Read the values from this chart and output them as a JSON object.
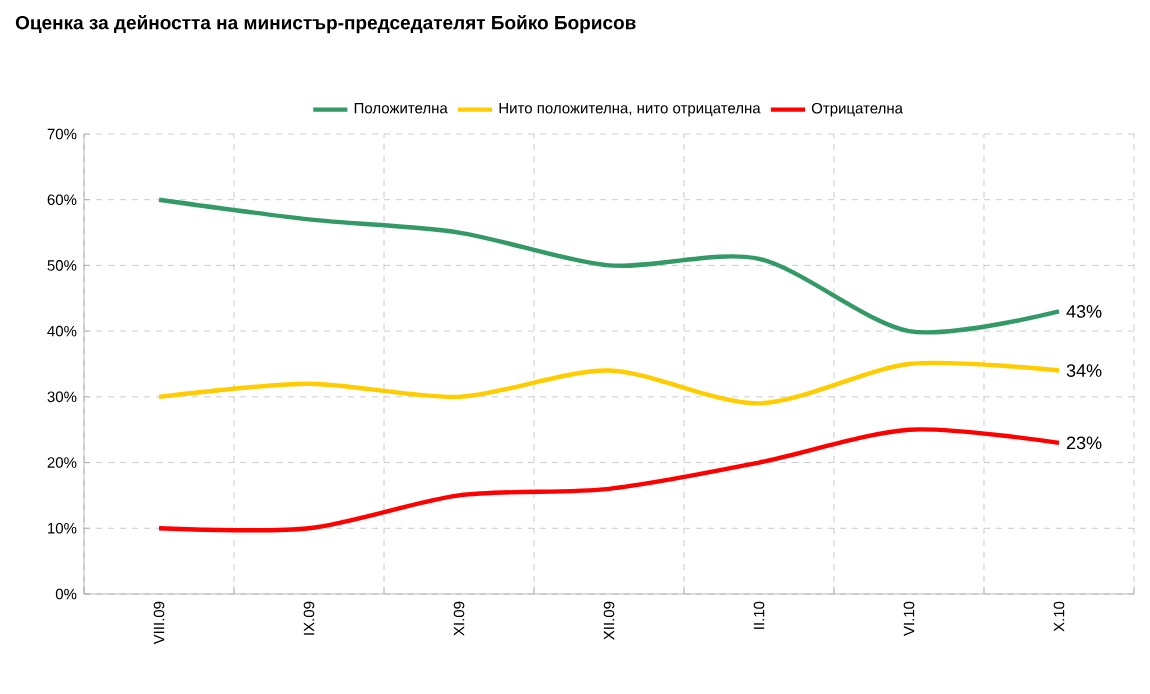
{
  "chart_data": {
    "type": "line",
    "title": "Оценка за дейността на министър-председателят  Бойко Борисов",
    "categories": [
      "VIII.09",
      "IX.09",
      "XI.09",
      "XII.09",
      "II.10",
      "VI.10",
      "X.10"
    ],
    "series": [
      {
        "name": "Положителна",
        "color": "#339966",
        "values": [
          60,
          57,
          55,
          50,
          51,
          40,
          43
        ],
        "value_labels": [
          null,
          null,
          null,
          null,
          null,
          null,
          "43%"
        ]
      },
      {
        "name": "Нито положителна, нито отрицателна",
        "color": "#ffcc00",
        "values": [
          30,
          32,
          30,
          34,
          29,
          35,
          34
        ],
        "value_labels": [
          null,
          null,
          null,
          null,
          null,
          null,
          "34%"
        ]
      },
      {
        "name": "Отрицателна",
        "color": "#ff0000",
        "values": [
          10,
          10,
          15,
          16,
          20,
          25,
          23
        ],
        "value_labels": [
          null,
          null,
          null,
          null,
          null,
          null,
          "23%"
        ]
      }
    ],
    "ylim": [
      0,
      70
    ],
    "yticks": [
      {
        "value": 0,
        "label": "0%"
      },
      {
        "value": 10,
        "label": "10%"
      },
      {
        "value": 20,
        "label": "20%"
      },
      {
        "value": 30,
        "label": "30%"
      },
      {
        "value": 40,
        "label": "40%"
      },
      {
        "value": 50,
        "label": "50%"
      },
      {
        "value": 60,
        "label": "60%"
      },
      {
        "value": 70,
        "label": "70%"
      }
    ],
    "grid": true,
    "legend": "top",
    "marker": "none",
    "line_style": "solid"
  }
}
